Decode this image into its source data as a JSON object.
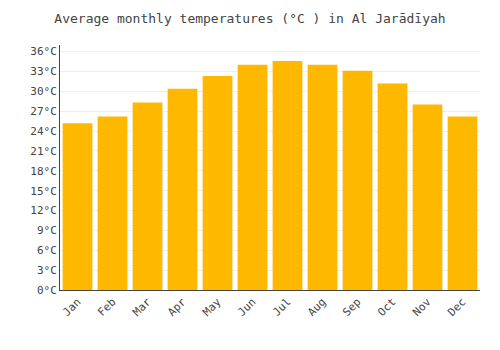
{
  "chart_data": {
    "type": "bar",
    "title": "Average monthly temperatures (°C ) in Al Jarādīyah",
    "categories": [
      "Jan",
      "Feb",
      "Mar",
      "Apr",
      "May",
      "Jun",
      "Jul",
      "Aug",
      "Sep",
      "Oct",
      "Nov",
      "Dec"
    ],
    "values": [
      25.2,
      26.2,
      28.3,
      30.4,
      32.3,
      34.0,
      34.6,
      34.0,
      33.1,
      31.2,
      28.0,
      26.2
    ],
    "color": "#FFB800",
    "ylim": [
      0,
      37
    ],
    "yticks": [
      {
        "value": 0,
        "label": "0°C"
      },
      {
        "value": 3,
        "label": "3°C"
      },
      {
        "value": 6,
        "label": "6°C"
      },
      {
        "value": 9,
        "label": "9°C"
      },
      {
        "value": 12,
        "label": "12°C"
      },
      {
        "value": 15,
        "label": "15°C"
      },
      {
        "value": 18,
        "label": "18°C"
      },
      {
        "value": 21,
        "label": "21°C"
      },
      {
        "value": 24,
        "label": "24°C"
      },
      {
        "value": 27,
        "label": "27°C"
      },
      {
        "value": 30,
        "label": "30°C"
      },
      {
        "value": 33,
        "label": "33°C"
      },
      {
        "value": 36,
        "label": "36°C"
      }
    ],
    "grid": true
  }
}
